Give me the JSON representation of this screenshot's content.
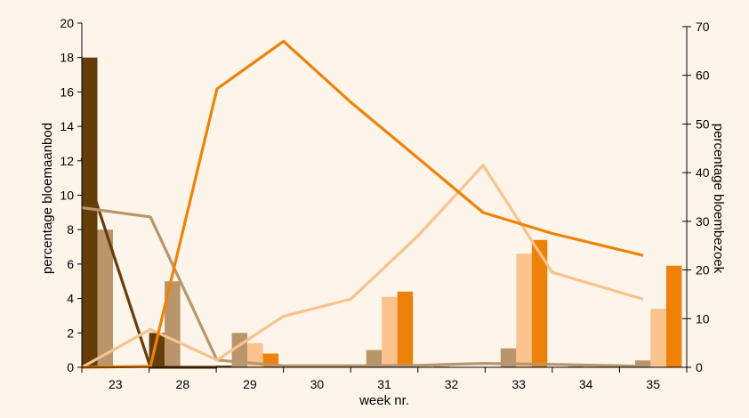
{
  "chart_data": {
    "type": "bar",
    "title": "",
    "xlabel": "week nr.",
    "ylabel_left": "percentage bloemaanbod",
    "ylabel_right": "percentage bloembezoek",
    "categories": [
      "23",
      "28",
      "29",
      "30",
      "31",
      "32",
      "33",
      "34",
      "35"
    ],
    "ylim_left": [
      0,
      20
    ],
    "yticks_left": [
      0,
      2,
      4,
      6,
      8,
      10,
      12,
      14,
      16,
      18,
      20
    ],
    "ylim_right": [
      0,
      70
    ],
    "yticks_right": [
      0,
      10,
      20,
      30,
      40,
      50,
      60,
      70
    ],
    "grid": false,
    "legend": "none",
    "colors": [
      "#663d0a",
      "#b8956a",
      "#fac28c",
      "#ee8208"
    ],
    "bar_series": [
      {
        "axis": "left",
        "values": [
          18.0,
          2.0,
          0.1,
          0,
          0,
          0,
          0,
          0,
          0
        ]
      },
      {
        "axis": "left",
        "values": [
          8.0,
          5.0,
          2.0,
          0.05,
          1.0,
          0.05,
          1.1,
          0.05,
          0.4
        ]
      },
      {
        "axis": "left",
        "values": [
          0,
          0,
          1.4,
          0,
          4.1,
          0,
          6.6,
          0,
          3.4
        ]
      },
      {
        "axis": "left",
        "values": [
          0,
          0,
          0.8,
          0,
          4.4,
          0,
          7.4,
          0,
          5.9
        ]
      }
    ],
    "line_series": [
      {
        "axis": "right",
        "x": [
          0.0,
          1.02,
          2.01
        ],
        "values": [
          43,
          0,
          0
        ]
      },
      {
        "axis": "right",
        "x": [
          0.0,
          1.02,
          2.01,
          3.0,
          4.0,
          5.0,
          5.97,
          7.0,
          8.35
        ],
        "values": [
          32.8,
          30.9,
          1.5,
          0.3,
          0.3,
          0.4,
          0.8,
          0.6,
          0.2
        ]
      },
      {
        "axis": "right",
        "x": [
          0.0,
          1.02,
          2.01,
          3.0,
          4.0,
          5.0,
          5.97,
          7.0,
          8.35
        ],
        "values": [
          0,
          7.8,
          1.5,
          10.5,
          14.0,
          27,
          41.5,
          19.5,
          14.0
        ]
      },
      {
        "axis": "right",
        "x": [
          0.0,
          1.02,
          2.01,
          3.0,
          4.0,
          5.0,
          5.97,
          7.0,
          8.35
        ],
        "values": [
          0,
          0.2,
          57.2,
          67.0,
          54.5,
          43.0,
          31.8,
          27.5,
          23.0
        ]
      }
    ]
  }
}
